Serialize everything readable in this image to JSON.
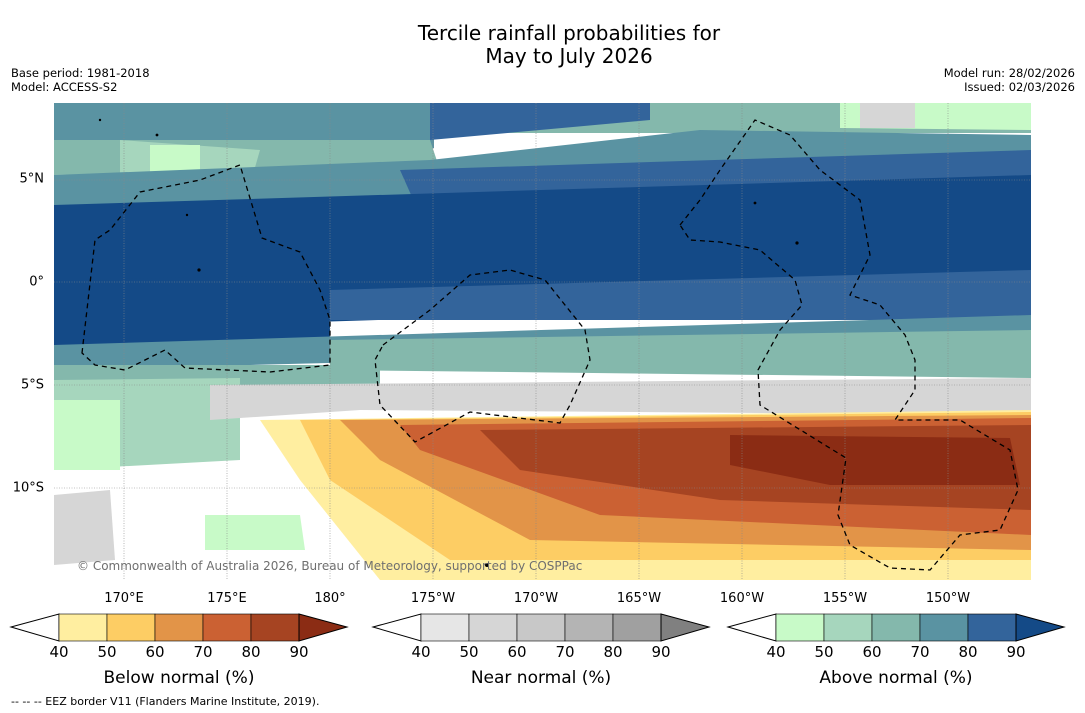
{
  "title": {
    "line1": "Tercile rainfall probabilities for",
    "line2": "May to July 2026"
  },
  "meta": {
    "base_period": "Base period: 1981-2018",
    "model": "Model: ACCESS-S2",
    "model_run": "Model run: 28/02/2026",
    "issued": "Issued: 02/03/2026"
  },
  "map": {
    "longitude_labels": [
      "170°E",
      "175°E",
      "180°",
      "175°W",
      "170°W",
      "165°W",
      "160°W",
      "155°W",
      "150°W"
    ],
    "latitude_labels": [
      "5°N",
      "0°",
      "5°S",
      "10°S"
    ],
    "copyright": "© Commonwealth of Australia 2026, Bureau of Meteorology, supported by COSPPac"
  },
  "colorbars": [
    {
      "title": "Below normal (%)",
      "ticks": [
        "40",
        "50",
        "60",
        "70",
        "80",
        "90"
      ],
      "colors": [
        "#ffeea0",
        "#fdcd64",
        "#e29448",
        "#cb6133",
        "#a64422",
        "#8b2c14"
      ]
    },
    {
      "title": "Near normal (%)",
      "ticks": [
        "40",
        "50",
        "60",
        "70",
        "80",
        "90"
      ],
      "colors": [
        "#e6e6e6",
        "#d6d6d6",
        "#c8c8c8",
        "#b4b4b4",
        "#a0a0a0",
        "#808080"
      ]
    },
    {
      "title": "Above normal (%)",
      "ticks": [
        "40",
        "50",
        "60",
        "70",
        "80",
        "90"
      ],
      "colors": [
        "#c8fac8",
        "#a6d6bd",
        "#84b8ac",
        "#5a93a2",
        "#33649b",
        "#144a87"
      ]
    }
  ],
  "footnote": "--  --  -- EEZ border V11 (Flanders Marine Institute, 2019)."
}
